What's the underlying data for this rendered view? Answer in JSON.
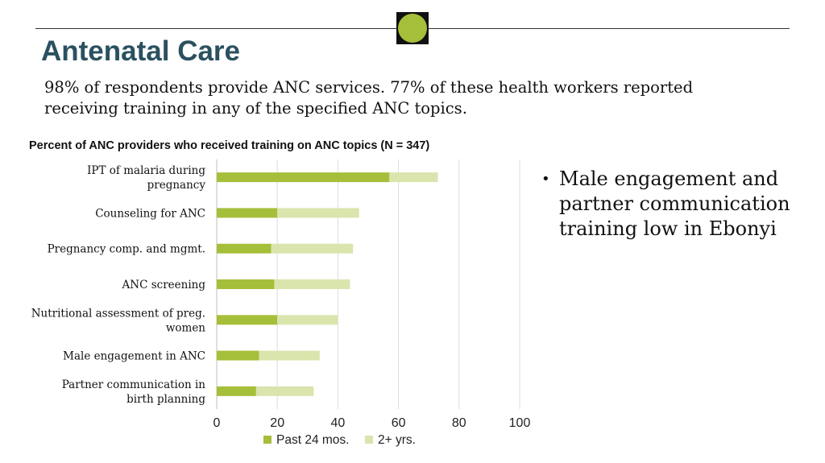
{
  "slide": {
    "title": "Antenatal Care",
    "subtitle": "98% of respondents provide ANC services. 77% of these health workers reported receiving training in any of the specified ANC topics.",
    "bullet_symbol": "•",
    "bullet_text": "Male engagement and partner communication training low in Ebonyi",
    "accent_color": "#a6bf3a",
    "title_color": "#2b5160"
  },
  "chart_data": {
    "type": "bar",
    "orientation": "horizontal",
    "stacked": true,
    "title": "Percent of ANC providers who received training on ANC topics (N = 347)",
    "categories": [
      [
        "IPT of malaria during",
        "pregnancy"
      ],
      [
        "Counseling for ANC"
      ],
      [
        "Pregnancy comp. and mgmt."
      ],
      [
        "ANC screening"
      ],
      [
        "Nutritional assessment of preg.",
        "women"
      ],
      [
        "Male engagement in ANC"
      ],
      [
        "Partner communication in",
        "birth planning"
      ]
    ],
    "series": [
      {
        "name": "Past 24 mos.",
        "color": "#a6bf3a",
        "values": [
          57,
          20,
          18,
          19,
          20,
          14,
          13
        ]
      },
      {
        "name": "2+ yrs.",
        "color": "#d9e5ad",
        "values": [
          16,
          27,
          27,
          25,
          20,
          20,
          19
        ]
      }
    ],
    "xlim": [
      0,
      100
    ],
    "xticks": [
      "0",
      "20",
      "40",
      "60",
      "80",
      "100"
    ],
    "grid": true,
    "legend_position": "bottom"
  }
}
